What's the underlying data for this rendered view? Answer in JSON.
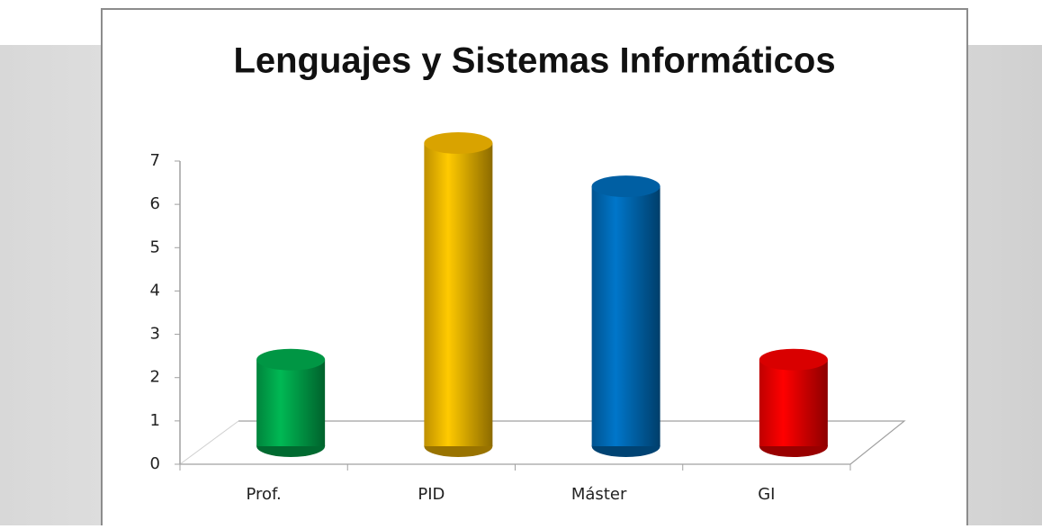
{
  "chart_data": {
    "type": "bar",
    "title": "Lenguajes y Sistemas Informáticos",
    "categories": [
      "Prof.",
      "PID",
      "Máster",
      "GI"
    ],
    "values": [
      2,
      7,
      6,
      2
    ],
    "colors": [
      "#00b050",
      "#ffc000",
      "#0070c0",
      "#ff0000"
    ],
    "ylim": [
      0,
      7
    ],
    "yticks": [
      0,
      1,
      2,
      3,
      4,
      5,
      6,
      7
    ]
  }
}
